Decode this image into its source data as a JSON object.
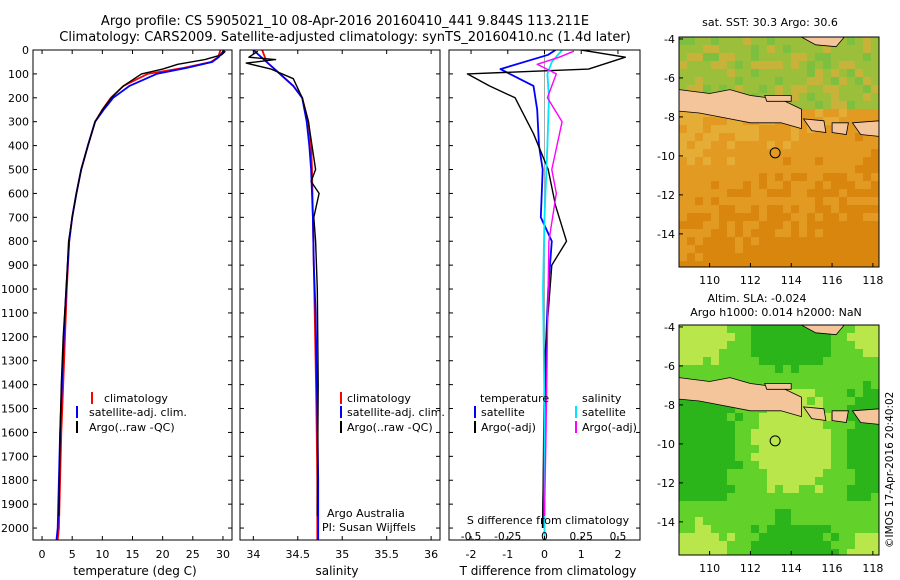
{
  "header": {
    "line1": "Argo profile: CS 5905021_10 08-Apr-2016 20160410_441 9.844S 113.211E",
    "line2": "Climatology: CARS2009. Satellite-adjusted climatology: synTS_20160410.nc (1.4d later)"
  },
  "colors": {
    "climatology": "#ff0000",
    "satellite": "#0000ff",
    "argo": "#000000",
    "sal_satellite": "#00e5ff",
    "sal_argo": "#ff00ff",
    "land": "#f4c49a",
    "sst_sea": "#e09a2a",
    "sla_sea": "#44cc22"
  },
  "chart_data": [
    {
      "type": "line",
      "name": "temperature",
      "xlabel": "temperature (deg C)",
      "ylabel": "",
      "xlim": [
        -1.5,
        31.5
      ],
      "ylim": [
        2050,
        0
      ],
      "xticks": [
        0,
        5,
        10,
        15,
        20,
        25,
        30
      ],
      "yticks": [
        0,
        100,
        200,
        300,
        400,
        500,
        600,
        700,
        800,
        900,
        1000,
        1100,
        1200,
        1300,
        1400,
        1500,
        1600,
        1700,
        1800,
        1900,
        2000
      ],
      "legend": {
        "position": "bottom-left",
        "entries": [
          "climatology",
          "satellite-adj. clim.",
          "Argo(..raw -QC)"
        ]
      },
      "series": [
        {
          "name": "climatology",
          "color": "#ff0000",
          "x": [
            29.6,
            29.2,
            28.0,
            23.5,
            17.5,
            13.5,
            11.4,
            10.0,
            8.8,
            7.6,
            6.5,
            5.7,
            5.0,
            4.5,
            4.1,
            3.8,
            3.5,
            3.2,
            3.0,
            2.8,
            2.6
          ],
          "y": [
            0,
            30,
            50,
            75,
            100,
            150,
            200,
            250,
            300,
            400,
            500,
            600,
            700,
            800,
            1000,
            1200,
            1400,
            1600,
            1800,
            2000,
            2050
          ]
        },
        {
          "name": "satellite-adj. clim.",
          "color": "#0000ff",
          "x": [
            30.2,
            29.3,
            28.2,
            24.0,
            19.0,
            14.5,
            11.8,
            10.2,
            8.8,
            7.6,
            6.5,
            5.7,
            5.0,
            4.5,
            4.0,
            3.6,
            3.3,
            3.0,
            2.8,
            2.6,
            2.4
          ],
          "y": [
            0,
            30,
            50,
            75,
            100,
            150,
            200,
            250,
            300,
            400,
            500,
            600,
            700,
            800,
            1000,
            1200,
            1400,
            1600,
            1800,
            2000,
            2050
          ]
        },
        {
          "name": "Argo(..raw -QC)",
          "color": "#000000",
          "x": [
            30.4,
            29.8,
            27.0,
            22.5,
            20.0,
            16.5,
            13.5,
            11.5,
            10.0,
            8.8,
            7.6,
            6.5,
            5.7,
            5.0,
            4.4,
            4.0,
            3.5,
            3.2,
            3.0,
            2.8
          ],
          "y": [
            5,
            20,
            40,
            60,
            80,
            100,
            150,
            200,
            250,
            300,
            400,
            500,
            600,
            700,
            800,
            1000,
            1200,
            1400,
            1600,
            1950
          ]
        }
      ]
    },
    {
      "type": "line",
      "name": "salinity",
      "xlabel": "salinity",
      "ylabel": "",
      "xlim": [
        33.85,
        36.1
      ],
      "ylim": [
        2050,
        0
      ],
      "xticks": [
        34,
        34.5,
        35,
        35.5,
        36
      ],
      "legend": {
        "position": "bottom-right",
        "entries": [
          "climatology",
          "satellite-adj. clim.",
          "Argo(..raw -QC)"
        ]
      },
      "annotations": [
        "Argo Australia",
        "PI: Susan Wijffels"
      ],
      "series": [
        {
          "name": "climatology",
          "color": "#ff0000",
          "x": [
            34.1,
            34.15,
            34.3,
            34.45,
            34.55,
            34.62,
            34.65,
            34.66,
            34.67,
            34.68,
            34.69,
            34.7,
            34.71,
            34.72,
            34.72
          ],
          "y": [
            0,
            50,
            100,
            150,
            200,
            300,
            400,
            500,
            700,
            900,
            1100,
            1300,
            1500,
            1800,
            2050
          ]
        },
        {
          "name": "satellite-adj. clim.",
          "color": "#0000ff",
          "x": [
            34.0,
            34.15,
            34.3,
            34.45,
            34.55,
            34.6,
            34.63,
            34.65,
            34.67,
            34.68,
            34.7,
            34.71,
            34.72,
            34.73,
            34.73
          ],
          "y": [
            0,
            50,
            100,
            150,
            200,
            300,
            400,
            500,
            700,
            900,
            1100,
            1300,
            1500,
            1800,
            2050
          ]
        },
        {
          "name": "Argo(..raw -QC)",
          "color": "#000000",
          "x": [
            34.05,
            33.95,
            34.25,
            33.92,
            34.2,
            34.45,
            34.55,
            34.62,
            34.66,
            34.7,
            34.65,
            34.74,
            34.68,
            34.7,
            34.72,
            34.73,
            34.72
          ],
          "y": [
            5,
            30,
            40,
            55,
            80,
            120,
            200,
            300,
            400,
            500,
            550,
            600,
            700,
            800,
            1000,
            1400,
            1950
          ]
        }
      ]
    },
    {
      "type": "line",
      "name": "difference from climatology",
      "xlabel": "T difference from climatology",
      "xlabel_top": "S difference from climatology",
      "xlim": [
        -2.6,
        2.6
      ],
      "ylim": [
        2050,
        0
      ],
      "xticks": [
        -2,
        -1,
        0,
        1,
        2
      ],
      "xticks_salinity": [
        -0.5,
        -0.25,
        0,
        0.25,
        0.5
      ],
      "legend": {
        "position": "bottom",
        "columns": [
          {
            "title": "temperature",
            "entries": [
              "satellite",
              "Argo(-adj)"
            ]
          },
          {
            "title": "salinity",
            "entries": [
              "satellite",
              "Argo(-adj)"
            ]
          }
        ]
      },
      "series": [
        {
          "name": "temperature satellite",
          "color": "#0000ff",
          "x": [
            0.3,
            0.1,
            -1.2,
            -0.3,
            -0.2,
            -0.15,
            -0.05,
            -0.1,
            0.2,
            0.1,
            0.05,
            0.0,
            -0.05
          ],
          "y": [
            0,
            20,
            80,
            150,
            250,
            400,
            500,
            700,
            800,
            1000,
            1200,
            1600,
            2000
          ]
        },
        {
          "name": "temperature Argo(-adj)",
          "color": "#000000",
          "x": [
            1.0,
            2.2,
            1.2,
            -2.1,
            -1.5,
            -0.8,
            -0.3,
            0.1,
            0.3,
            0.6,
            0.2,
            0.0,
            -0.05
          ],
          "y": [
            0,
            30,
            80,
            100,
            150,
            200,
            350,
            500,
            650,
            800,
            900,
            1300,
            2000
          ]
        },
        {
          "name": "salinity satellite",
          "color": "#00e5ff",
          "x": [
            0.12,
            0.05,
            0.02,
            0.03,
            0.02,
            0.0,
            -0.01,
            0.0,
            0.0
          ],
          "y": [
            0,
            50,
            100,
            200,
            400,
            700,
            1000,
            1500,
            2050
          ]
        },
        {
          "name": "salinity Argo(-adj)",
          "color": "#ff00ff",
          "x": [
            0.2,
            0.1,
            -0.05,
            0.08,
            0.02,
            0.12,
            0.05,
            0.08,
            0.03,
            0.02,
            0.01,
            0.0
          ],
          "y": [
            5,
            30,
            60,
            100,
            200,
            300,
            500,
            600,
            800,
            1200,
            1600,
            1950
          ]
        }
      ]
    },
    {
      "type": "heatmap",
      "name": "sat SST map",
      "title": "sat. SST: 30.3 Argo: 30.6",
      "xlim": [
        108.5,
        118.3
      ],
      "ylim": [
        -15.7,
        -3.9
      ],
      "xticks": [
        110,
        112,
        114,
        116,
        118
      ],
      "yticks": [
        -4,
        -6,
        -8,
        -10,
        -12,
        -14
      ],
      "marker": {
        "lon": 113.211,
        "lat": -9.844
      }
    },
    {
      "type": "heatmap",
      "name": "altimetry SLA map",
      "title_line1": "Altim. SLA: -0.024",
      "title_line2": "Argo h1000: 0.014 h2000: NaN",
      "xlim": [
        108.5,
        118.3
      ],
      "ylim": [
        -15.7,
        -3.9
      ],
      "xticks": [
        110,
        112,
        114,
        116,
        118
      ],
      "yticks": [
        -4,
        -6,
        -8,
        -10,
        -12,
        -14
      ],
      "marker": {
        "lon": 113.211,
        "lat": -9.844
      }
    }
  ],
  "footer": {
    "credit": "©IMOS 17-Apr-2016 20:40:02"
  }
}
